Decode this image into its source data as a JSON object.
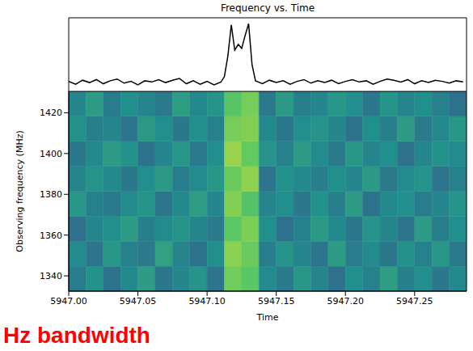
{
  "chart_data": [
    {
      "type": "line",
      "title": "Frequency vs. Time",
      "x": [
        5947.0,
        5947.005,
        5947.01,
        5947.015,
        5947.02,
        5947.025,
        5947.03,
        5947.035,
        5947.04,
        5947.045,
        5947.05,
        5947.055,
        5947.06,
        5947.065,
        5947.07,
        5947.075,
        5947.08,
        5947.085,
        5947.09,
        5947.095,
        5947.1,
        5947.105,
        5947.11,
        5947.1125,
        5947.115,
        5947.1175,
        5947.12,
        5947.1225,
        5947.125,
        5947.1275,
        5947.13,
        5947.1325,
        5947.135,
        5947.14,
        5947.145,
        5947.15,
        5947.155,
        5947.16,
        5947.165,
        5947.17,
        5947.175,
        5947.18,
        5947.185,
        5947.19,
        5947.195,
        5947.2,
        5947.205,
        5947.21,
        5947.215,
        5947.22,
        5947.225,
        5947.23,
        5947.235,
        5947.24,
        5947.245,
        5947.25,
        5947.255,
        5947.26,
        5947.265,
        5947.27,
        5947.275,
        5947.28,
        5947.285
      ],
      "values": [
        0.02,
        -0.03,
        0.04,
        0.0,
        0.05,
        -0.02,
        0.03,
        0.06,
        -0.01,
        0.02,
        -0.04,
        0.03,
        0.01,
        0.05,
        0.0,
        0.04,
        0.07,
        -0.02,
        0.03,
        -0.03,
        0.02,
        -0.04,
        0.01,
        0.1,
        0.45,
        0.98,
        0.55,
        0.65,
        0.58,
        0.8,
        1.0,
        0.3,
        0.03,
        -0.02,
        0.04,
        0.0,
        0.03,
        -0.03,
        0.02,
        0.05,
        -0.01,
        0.03,
        0.0,
        0.04,
        -0.02,
        0.02,
        0.05,
        0.01,
        0.03,
        -0.03,
        0.02,
        0.06,
        0.04,
        0.01,
        0.05,
        -0.02,
        0.03,
        0.0,
        0.04,
        0.02,
        -0.01,
        0.03,
        0.01
      ],
      "xlim": [
        5947.0,
        5947.2875
      ],
      "ylim": [
        -0.15,
        1.1
      ],
      "color": "#000000",
      "tick_labels": false
    },
    {
      "type": "heatmap",
      "x_label": "Time",
      "y_label": "Observing frequency (MHz)",
      "time_bins": [
        5947.0,
        5947.0125,
        5947.025,
        5947.0375,
        5947.05,
        5947.0625,
        5947.075,
        5947.0875,
        5947.1,
        5947.1125,
        5947.125,
        5947.1375,
        5947.15,
        5947.1625,
        5947.175,
        5947.1875,
        5947.2,
        5947.2125,
        5947.225,
        5947.2375,
        5947.25,
        5947.2625,
        5947.275,
        5947.2875
      ],
      "frequency_bins": [
        1332.5,
        1344.75,
        1357,
        1369.25,
        1381.5,
        1393.75,
        1406,
        1418.25,
        1430.5
      ],
      "cells": [
        [
          0.42,
          0.51,
          0.38,
          0.47,
          0.55,
          0.4,
          0.46,
          0.52,
          0.39,
          0.78,
          0.74,
          0.48,
          0.41,
          0.53,
          0.45,
          0.37,
          0.5,
          0.44,
          0.56,
          0.43,
          0.49,
          0.4,
          0.47
        ],
        [
          0.48,
          0.39,
          0.53,
          0.44,
          0.41,
          0.57,
          0.45,
          0.38,
          0.5,
          0.82,
          0.77,
          0.43,
          0.52,
          0.46,
          0.39,
          0.55,
          0.42,
          0.48,
          0.4,
          0.51,
          0.44,
          0.53,
          0.41
        ],
        [
          0.37,
          0.46,
          0.5,
          0.55,
          0.43,
          0.48,
          0.52,
          0.45,
          0.41,
          0.75,
          0.8,
          0.5,
          0.38,
          0.44,
          0.54,
          0.47,
          0.4,
          0.52,
          0.46,
          0.39,
          0.55,
          0.43,
          0.49
        ],
        [
          0.53,
          0.44,
          0.41,
          0.48,
          0.52,
          0.39,
          0.47,
          0.56,
          0.46,
          0.81,
          0.72,
          0.45,
          0.49,
          0.4,
          0.51,
          0.43,
          0.55,
          0.38,
          0.47,
          0.5,
          0.42,
          0.46,
          0.52
        ],
        [
          0.45,
          0.52,
          0.47,
          0.4,
          0.49,
          0.54,
          0.42,
          0.48,
          0.53,
          0.77,
          0.83,
          0.39,
          0.51,
          0.47,
          0.43,
          0.5,
          0.46,
          0.54,
          0.41,
          0.48,
          0.52,
          0.39,
          0.44
        ],
        [
          0.4,
          0.47,
          0.55,
          0.51,
          0.38,
          0.46,
          0.53,
          0.41,
          0.49,
          0.84,
          0.76,
          0.52,
          0.44,
          0.55,
          0.48,
          0.41,
          0.53,
          0.45,
          0.5,
          0.37,
          0.46,
          0.51,
          0.48
        ],
        [
          0.51,
          0.43,
          0.46,
          0.39,
          0.54,
          0.49,
          0.4,
          0.5,
          0.44,
          0.79,
          0.81,
          0.47,
          0.4,
          0.49,
          0.52,
          0.46,
          0.38,
          0.5,
          0.43,
          0.55,
          0.41,
          0.47,
          0.53
        ],
        [
          0.46,
          0.55,
          0.42,
          0.5,
          0.45,
          0.41,
          0.56,
          0.47,
          0.52,
          0.73,
          0.79,
          0.41,
          0.54,
          0.43,
          0.46,
          0.53,
          0.49,
          0.4,
          0.52,
          0.45,
          0.5,
          0.44,
          0.38
        ]
      ],
      "zlim": [
        0,
        1
      ],
      "xlim": [
        5947.0,
        5947.2875
      ],
      "ylim": [
        1332.5,
        1430.5
      ],
      "xticks": [
        {
          "value": 5947.0,
          "label": "5947.00"
        },
        {
          "value": 5947.05,
          "label": "5947.05"
        },
        {
          "value": 5947.1,
          "label": "5947.10"
        },
        {
          "value": 5947.15,
          "label": "5947.15"
        },
        {
          "value": 5947.2,
          "label": "5947.20"
        },
        {
          "value": 5947.25,
          "label": "5947.25"
        }
      ],
      "yticks": [
        1340,
        1360,
        1380,
        1400,
        1420
      ],
      "annotations": [
        {
          "text": "Hz bandwidth",
          "color": "#ff0000"
        }
      ]
    }
  ]
}
